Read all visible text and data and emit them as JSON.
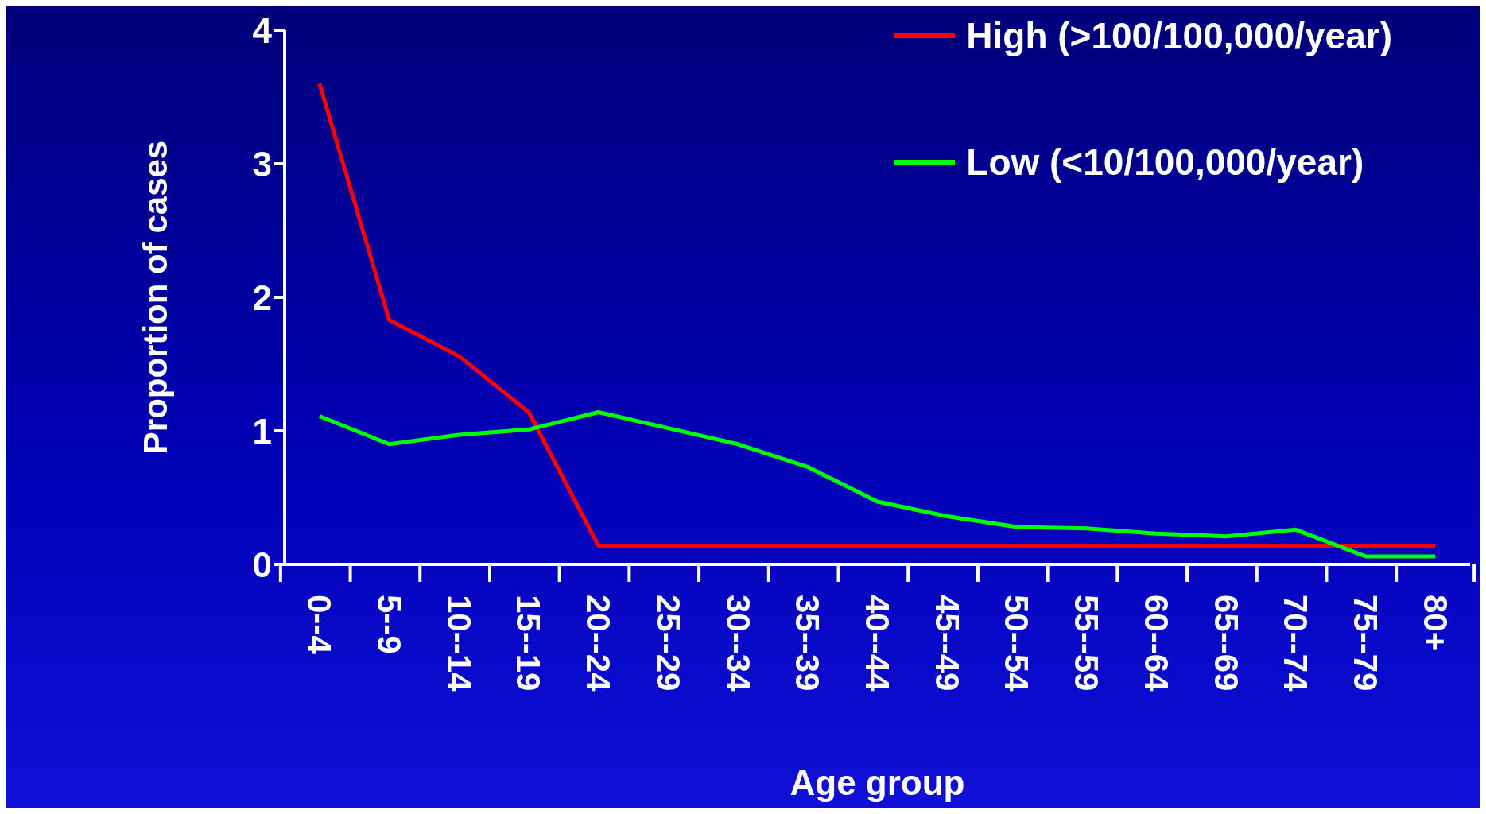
{
  "chart_data": {
    "type": "line",
    "xlabel": "Age group",
    "ylabel": "Proportion of cases",
    "categories": [
      "0--4",
      "5--9",
      "10--14",
      "15--19",
      "20--24",
      "25--29",
      "30--34",
      "35--39",
      "40--44",
      "45--49",
      "50--54",
      "55--59",
      "60--64",
      "65--69",
      "70--74",
      "75--79",
      "80+"
    ],
    "series": [
      {
        "name": "High (>100/100,000/year)",
        "color": "#ff0000",
        "values": [
          3.6,
          1.83,
          1.56,
          1.14,
          0.14,
          0.14,
          0.14,
          0.14,
          0.14,
          0.14,
          0.14,
          0.14,
          0.14,
          0.14,
          0.14,
          0.14,
          0.14
        ]
      },
      {
        "name": "Low (<10/100,000/year)",
        "color": "#00ff00",
        "values": [
          1.11,
          0.9,
          0.97,
          1.01,
          1.14,
          1.02,
          0.9,
          0.73,
          0.47,
          0.36,
          0.28,
          0.27,
          0.23,
          0.21,
          0.26,
          0.06,
          0.06
        ]
      }
    ],
    "ylim": [
      0,
      4
    ],
    "yticks": [
      0,
      1,
      2,
      3,
      4
    ],
    "grid": false,
    "legend": "top right",
    "marker": "none",
    "line_style": "solid"
  }
}
